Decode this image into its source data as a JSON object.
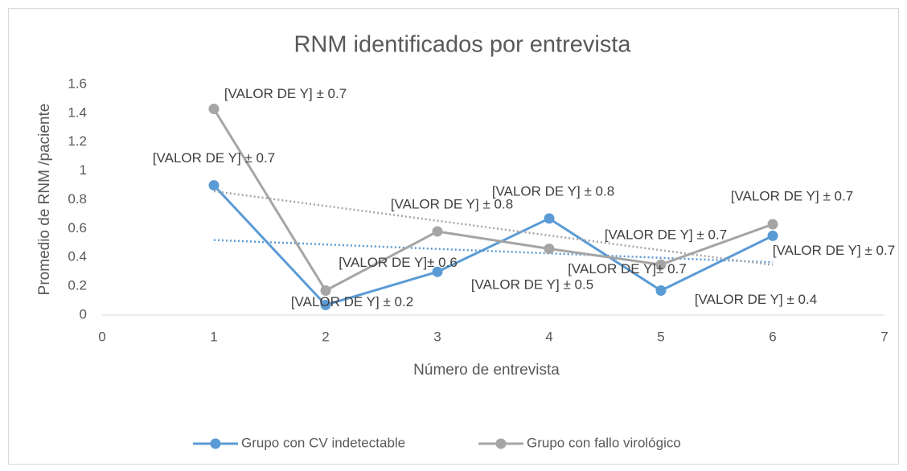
{
  "chart_data": {
    "type": "line",
    "title": "RNM identificados por entrevista",
    "x_label": "Número de entrevista",
    "y_label": "Promedio de RNM /paciente",
    "x": [
      1,
      2,
      3,
      4,
      5,
      6
    ],
    "xlim": [
      0,
      7
    ],
    "xticks": [
      0,
      1,
      2,
      3,
      4,
      5,
      6,
      7
    ],
    "ylim": [
      0,
      1.6
    ],
    "yticks": [
      0,
      0.2,
      0.4,
      0.6,
      0.8,
      1,
      1.2,
      1.4,
      1.6
    ],
    "grid": false,
    "trendline": "linear",
    "legend": "bottom",
    "series": [
      {
        "name": "Grupo con CV indetectable",
        "color": "#5b9bd5",
        "values": [
          0.9,
          0.07,
          0.3,
          0.67,
          0.17,
          0.55
        ],
        "data_labels": [
          "[VALOR DE Y] ± 0.7",
          "[VALOR DE Y] ± 0.2",
          "[VALOR DE Y] ± 0.5",
          "[VALOR DE Y] ± 0.8",
          "[VALOR DE Y] ± 0.4",
          "[VALOR DE Y] ± 0.7"
        ]
      },
      {
        "name": "Grupo con fallo virológico",
        "color": "#a5a5a5",
        "values": [
          1.43,
          0.17,
          0.58,
          0.46,
          0.35,
          0.63
        ],
        "data_labels": [
          "[VALOR DE Y] ± 0.7",
          "[VALOR DE Y]± 0.6",
          "[VALOR DE Y] ± 0.8",
          "[VALOR DE Y]± 0.7",
          "[VALOR DE Y] ± 0.7",
          "[VALOR DE Y] ± 0.7"
        ]
      }
    ]
  }
}
